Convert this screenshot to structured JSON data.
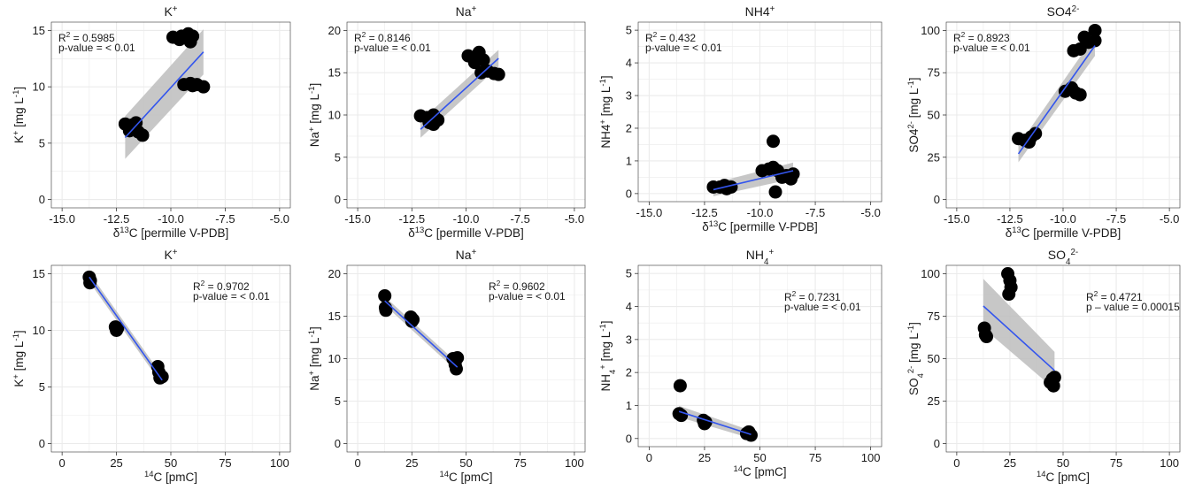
{
  "figure": {
    "colors": {
      "point": "#000000",
      "line": "#3355ee",
      "band": "#bdbdbd",
      "grid": "#ebebeb",
      "frame": "#333333"
    }
  },
  "chart_data": [
    {
      "type": "scatter",
      "title": "K+",
      "xlabel": "δ13C [permille V-PDB]",
      "ylabel": "K+ [mg L-1]",
      "xlim": [
        -15,
        -5
      ],
      "ylim": [
        0,
        15
      ],
      "xticks": [
        "-15.0",
        "-12.5",
        "-10.0",
        "-7.5",
        "-5.0"
      ],
      "xtick_values": [
        -15,
        -12.5,
        -10,
        -7.5,
        -5
      ],
      "yticks": [
        "0",
        "5",
        "10",
        "15"
      ],
      "ytick_values": [
        0,
        5,
        10,
        15
      ],
      "annotation": [
        "R2 = 0.5985",
        "p-value = < 0.01"
      ],
      "points": [
        {
          "x": -12.1,
          "y": 6.7
        },
        {
          "x": -11.8,
          "y": 6.6
        },
        {
          "x": -11.6,
          "y": 6.8
        },
        {
          "x": -11.9,
          "y": 6.1
        },
        {
          "x": -11.5,
          "y": 6.0
        },
        {
          "x": -11.3,
          "y": 5.7
        },
        {
          "x": -11.7,
          "y": 6.3
        },
        {
          "x": -9.9,
          "y": 14.4
        },
        {
          "x": -9.5,
          "y": 14.5
        },
        {
          "x": -9.2,
          "y": 14.7
        },
        {
          "x": -9.0,
          "y": 14.5
        },
        {
          "x": -9.6,
          "y": 14.2
        },
        {
          "x": -9.1,
          "y": 14.0
        },
        {
          "x": -9.4,
          "y": 10.2
        },
        {
          "x": -9.1,
          "y": 10.3
        },
        {
          "x": -8.8,
          "y": 10.2
        },
        {
          "x": -8.5,
          "y": 10.0
        },
        {
          "x": -9.0,
          "y": 10.1
        }
      ],
      "fit": {
        "x": [
          -12.1,
          -8.5
        ],
        "y": [
          5.5,
          13.1
        ],
        "lower": [
          3.6,
          11.1
        ],
        "upper": [
          7.4,
          15.1
        ]
      }
    },
    {
      "type": "scatter",
      "title": "Na+",
      "xlabel": "δ13C [permille V-PDB]",
      "ylabel": "Na+ [mg L-1]",
      "xlim": [
        -15,
        -5
      ],
      "ylim": [
        0,
        20
      ],
      "xticks": [
        "-15.0",
        "-12.5",
        "-10.0",
        "-7.5",
        "-5.0"
      ],
      "xtick_values": [
        -15,
        -12.5,
        -10,
        -7.5,
        -5
      ],
      "yticks": [
        "0",
        "5",
        "10",
        "15",
        "20"
      ],
      "ytick_values": [
        0,
        5,
        10,
        15,
        20
      ],
      "annotation": [
        "R2 = 0.8146",
        "p-value = < 0.01"
      ],
      "points": [
        {
          "x": -12.1,
          "y": 9.9
        },
        {
          "x": -11.8,
          "y": 9.7
        },
        {
          "x": -11.5,
          "y": 10.0
        },
        {
          "x": -11.3,
          "y": 9.4
        },
        {
          "x": -11.7,
          "y": 9.1
        },
        {
          "x": -11.5,
          "y": 8.9
        },
        {
          "x": -9.9,
          "y": 17.0
        },
        {
          "x": -9.4,
          "y": 17.4
        },
        {
          "x": -9.2,
          "y": 16.5
        },
        {
          "x": -9.6,
          "y": 16.2
        },
        {
          "x": -9.3,
          "y": 15.0
        },
        {
          "x": -9.0,
          "y": 15.2
        },
        {
          "x": -8.7,
          "y": 14.9
        },
        {
          "x": -8.5,
          "y": 14.8
        }
      ],
      "fit": {
        "x": [
          -12.1,
          -8.5
        ],
        "y": [
          8.3,
          16.7
        ],
        "lower": [
          7.3,
          15.7
        ],
        "upper": [
          9.3,
          17.7
        ]
      }
    },
    {
      "type": "scatter",
      "title": "NH4+",
      "xlabel": "δ13C [permille V-PDB]",
      "ylabel": "NH4+ [mg L-1]",
      "xlim": [
        -15,
        -5
      ],
      "ylim": [
        0,
        5
      ],
      "xticks": [
        "-15.0",
        "-12.5",
        "-10.0",
        "-7.5",
        "-5.0"
      ],
      "xtick_values": [
        -15,
        -12.5,
        -10,
        -7.5,
        -5
      ],
      "yticks": [
        "0",
        "1",
        "2",
        "3",
        "4",
        "5"
      ],
      "ytick_values": [
        0,
        1,
        2,
        3,
        4,
        5
      ],
      "annotation": [
        "R2 = 0.432",
        "p-value = < 0.01"
      ],
      "points": [
        {
          "x": -12.1,
          "y": 0.2
        },
        {
          "x": -11.8,
          "y": 0.2
        },
        {
          "x": -11.5,
          "y": 0.15
        },
        {
          "x": -11.3,
          "y": 0.2
        },
        {
          "x": -11.6,
          "y": 0.25
        },
        {
          "x": -9.9,
          "y": 0.7
        },
        {
          "x": -9.6,
          "y": 0.75
        },
        {
          "x": -9.4,
          "y": 0.8
        },
        {
          "x": -9.2,
          "y": 0.7
        },
        {
          "x": -9.4,
          "y": 1.6
        },
        {
          "x": -9.3,
          "y": 0.05
        },
        {
          "x": -9.0,
          "y": 0.5
        },
        {
          "x": -8.8,
          "y": 0.55
        },
        {
          "x": -8.5,
          "y": 0.6
        },
        {
          "x": -8.6,
          "y": 0.45
        }
      ],
      "fit": {
        "x": [
          -12.1,
          -8.5
        ],
        "y": [
          0.12,
          0.7
        ],
        "lower": [
          -0.08,
          0.45
        ],
        "upper": [
          0.32,
          0.95
        ]
      }
    },
    {
      "type": "scatter",
      "title": "SO42-",
      "xlabel": "δ13C [permille V-PDB]",
      "ylabel": "SO42- [mg L-1]",
      "xlim": [
        -15,
        -5
      ],
      "ylim": [
        0,
        100
      ],
      "xticks": [
        "-15.0",
        "-12.5",
        "-10.0",
        "-7.5",
        "-5.0"
      ],
      "xtick_values": [
        -15,
        -12.5,
        -10,
        -7.5,
        -5
      ],
      "yticks": [
        "0",
        "25",
        "50",
        "75",
        "100"
      ],
      "ytick_values": [
        0,
        25,
        50,
        75,
        100
      ],
      "annotation": [
        "R2 = 0.8923",
        "p-value = < 0.01"
      ],
      "points": [
        {
          "x": -12.1,
          "y": 36
        },
        {
          "x": -11.8,
          "y": 35
        },
        {
          "x": -11.5,
          "y": 37
        },
        {
          "x": -11.3,
          "y": 39
        },
        {
          "x": -11.6,
          "y": 34
        },
        {
          "x": -9.9,
          "y": 64
        },
        {
          "x": -9.6,
          "y": 66
        },
        {
          "x": -9.4,
          "y": 63
        },
        {
          "x": -9.2,
          "y": 62
        },
        {
          "x": -9.5,
          "y": 88
        },
        {
          "x": -9.2,
          "y": 89
        },
        {
          "x": -9.0,
          "y": 96
        },
        {
          "x": -8.8,
          "y": 93
        },
        {
          "x": -8.5,
          "y": 100
        },
        {
          "x": -8.5,
          "y": 94
        }
      ],
      "fit": {
        "x": [
          -12.1,
          -8.5
        ],
        "y": [
          27,
          91
        ],
        "lower": [
          22,
          85
        ],
        "upper": [
          32,
          97
        ]
      }
    },
    {
      "type": "scatter",
      "title": "K+",
      "xlabel": "14C [pmC]",
      "ylabel": "K+ [mg L-1]",
      "xlim": [
        0,
        100
      ],
      "ylim": [
        0,
        15
      ],
      "xticks": [
        "0",
        "25",
        "50",
        "75",
        "100"
      ],
      "xtick_values": [
        0,
        25,
        50,
        75,
        100
      ],
      "yticks": [
        "0",
        "5",
        "10",
        "15"
      ],
      "ytick_values": [
        0,
        5,
        10,
        15
      ],
      "annotation": [
        "R2 = 0.9702",
        "p-value = < 0.01"
      ],
      "points": [
        {
          "x": 12.5,
          "y": 14.7
        },
        {
          "x": 13.0,
          "y": 14.4
        },
        {
          "x": 12.8,
          "y": 14.2
        },
        {
          "x": 24.5,
          "y": 10.3
        },
        {
          "x": 25.5,
          "y": 10.2
        },
        {
          "x": 25.0,
          "y": 10.0
        },
        {
          "x": 44.0,
          "y": 6.8
        },
        {
          "x": 44.5,
          "y": 6.3
        },
        {
          "x": 45.0,
          "y": 5.8
        },
        {
          "x": 46.0,
          "y": 5.9
        }
      ],
      "fit": {
        "x": [
          12.5,
          46.0
        ],
        "y": [
          14.7,
          5.6
        ],
        "lower": [
          14.3,
          5.2
        ],
        "upper": [
          15.1,
          6.0
        ]
      }
    },
    {
      "type": "scatter",
      "title": "Na+",
      "xlabel": "14C [pmC]",
      "ylabel": "Na+ [mg L-1]",
      "xlim": [
        0,
        100
      ],
      "ylim": [
        0,
        20
      ],
      "xticks": [
        "0",
        "25",
        "50",
        "75",
        "100"
      ],
      "xtick_values": [
        0,
        25,
        50,
        75,
        100
      ],
      "yticks": [
        "0",
        "5",
        "10",
        "15",
        "20"
      ],
      "ytick_values": [
        0,
        5,
        10,
        15,
        20
      ],
      "annotation": [
        "R2 = 0.9602",
        "p-value = < 0.01"
      ],
      "points": [
        {
          "x": 12.5,
          "y": 17.4
        },
        {
          "x": 12.8,
          "y": 16.0
        },
        {
          "x": 13.0,
          "y": 15.7
        },
        {
          "x": 24.5,
          "y": 14.9
        },
        {
          "x": 25.5,
          "y": 14.6
        },
        {
          "x": 25.0,
          "y": 14.4
        },
        {
          "x": 44.0,
          "y": 10.0
        },
        {
          "x": 45.0,
          "y": 9.3
        },
        {
          "x": 46.0,
          "y": 10.1
        },
        {
          "x": 45.5,
          "y": 8.8
        }
      ],
      "fit": {
        "x": [
          12.5,
          46.0
        ],
        "y": [
          16.8,
          9.0
        ],
        "lower": [
          16.3,
          8.5
        ],
        "upper": [
          17.3,
          9.5
        ]
      }
    },
    {
      "type": "scatter",
      "title": "NH4+",
      "xlabel": "14C [pmC]",
      "ylabel": "NH4+ [mg L-1]",
      "xlim": [
        0,
        100
      ],
      "ylim": [
        0,
        5
      ],
      "xticks": [
        "0",
        "25",
        "50",
        "75",
        "100"
      ],
      "xtick_values": [
        0,
        25,
        50,
        75,
        100
      ],
      "yticks": [
        "0",
        "1",
        "2",
        "3",
        "4",
        "5"
      ],
      "ytick_values": [
        0,
        1,
        2,
        3,
        4,
        5
      ],
      "annotation": [
        "R2 = 0.7231",
        "p-value = < 0.01"
      ],
      "points": [
        {
          "x": 13.5,
          "y": 0.75
        },
        {
          "x": 14.0,
          "y": 1.6
        },
        {
          "x": 14.5,
          "y": 0.7
        },
        {
          "x": 24.5,
          "y": 0.55
        },
        {
          "x": 25.5,
          "y": 0.5
        },
        {
          "x": 25.0,
          "y": 0.45
        },
        {
          "x": 44.0,
          "y": 0.15
        },
        {
          "x": 45.0,
          "y": 0.2
        },
        {
          "x": 46.0,
          "y": 0.1
        }
      ],
      "fit": {
        "x": [
          13.5,
          46.0
        ],
        "y": [
          0.82,
          0.12
        ],
        "lower": [
          0.65,
          0.0
        ],
        "upper": [
          0.99,
          0.24
        ]
      }
    },
    {
      "type": "scatter",
      "title": "SO42-",
      "xlabel": "14C [pmC]",
      "ylabel": "SO42- [mg L-1]",
      "xlim": [
        0,
        100
      ],
      "ylim": [
        0,
        100
      ],
      "xticks": [
        "0",
        "25",
        "50",
        "75",
        "100"
      ],
      "xtick_values": [
        0,
        25,
        50,
        75,
        100
      ],
      "yticks": [
        "0",
        "25",
        "50",
        "75",
        "100"
      ],
      "ytick_values": [
        0,
        25,
        50,
        75,
        100
      ],
      "annotation": [
        "R2 = 0.4721",
        "p – value = 0.00015"
      ],
      "points": [
        {
          "x": 13.0,
          "y": 68
        },
        {
          "x": 13.5,
          "y": 64
        },
        {
          "x": 14.0,
          "y": 63
        },
        {
          "x": 24.0,
          "y": 100
        },
        {
          "x": 25.0,
          "y": 96
        },
        {
          "x": 25.5,
          "y": 92
        },
        {
          "x": 24.5,
          "y": 88
        },
        {
          "x": 44.0,
          "y": 36
        },
        {
          "x": 45.0,
          "y": 38
        },
        {
          "x": 46.0,
          "y": 39
        },
        {
          "x": 45.5,
          "y": 34
        }
      ],
      "fit": {
        "x": [
          12.5,
          46.0
        ],
        "y": [
          81,
          43
        ],
        "lower": [
          68,
          32
        ],
        "upper": [
          97,
          54
        ]
      }
    }
  ]
}
